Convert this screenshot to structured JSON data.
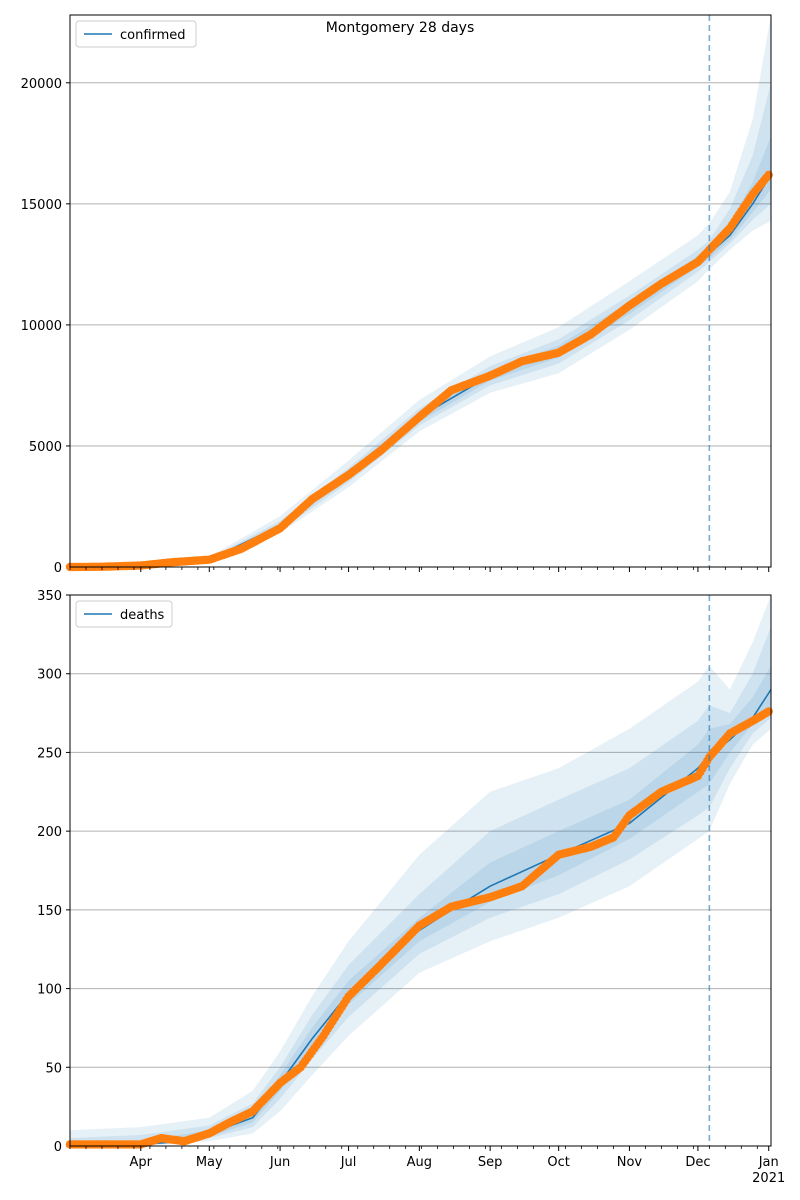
{
  "title": "Montgomery 28 days",
  "colors": {
    "line": "#1f77b4",
    "points": "#ff7f0e",
    "band": "#1f77b4",
    "grid": "#b0b0b0",
    "vline": "#1f77b4"
  },
  "x_axis": {
    "type": "date",
    "range": [
      "2020-03-01",
      "2021-01-02"
    ],
    "tick_labels": [
      "Apr",
      "May",
      "Jun",
      "Jul",
      "Aug",
      "Sep",
      "Oct",
      "Nov",
      "Dec",
      "Jan"
    ],
    "year_label": "2021"
  },
  "chart_data": [
    {
      "type": "line",
      "legend": "confirmed",
      "legend_position": "top-left",
      "grid": "horizontal",
      "ylim": [
        0,
        22800
      ],
      "yticks": [
        0,
        5000,
        10000,
        15000,
        20000
      ],
      "forecast_start": "2020-12-06",
      "model_curve": {
        "x": [
          "2020-03-01",
          "2020-04-01",
          "2020-05-01",
          "2020-06-01",
          "2020-07-01",
          "2020-08-01",
          "2020-09-01",
          "2020-10-01",
          "2020-11-01",
          "2020-12-01",
          "2020-12-06",
          "2020-12-15",
          "2020-12-25",
          "2021-01-02"
        ],
        "y": [
          0,
          40,
          300,
          1700,
          3800,
          6200,
          7900,
          8900,
          10700,
          12600,
          12950,
          13700,
          15000,
          16200
        ]
      },
      "bands": [
        {
          "x": [
            "2020-03-01",
            "2020-04-01",
            "2020-05-01",
            "2020-06-01",
            "2020-07-01",
            "2020-08-01",
            "2020-09-01",
            "2020-10-01",
            "2020-11-01",
            "2020-12-01",
            "2020-12-06",
            "2020-12-15",
            "2020-12-25",
            "2021-01-02"
          ],
          "low": [
            0,
            20,
            200,
            1400,
            3300,
            5600,
            7200,
            8000,
            9800,
            11800,
            12300,
            13100,
            13900,
            14300
          ],
          "high": [
            50,
            90,
            420,
            2100,
            4400,
            6900,
            8700,
            9900,
            11800,
            13700,
            14200,
            15500,
            18500,
            22800
          ]
        },
        {
          "x": [
            "2020-03-01",
            "2020-04-01",
            "2020-05-01",
            "2020-06-01",
            "2020-07-01",
            "2020-08-01",
            "2020-09-01",
            "2020-10-01",
            "2020-11-01",
            "2020-12-01",
            "2020-12-06",
            "2020-12-15",
            "2020-12-25",
            "2021-01-02"
          ],
          "low": [
            0,
            30,
            240,
            1500,
            3500,
            5850,
            7500,
            8400,
            10200,
            12200,
            12600,
            13350,
            14350,
            15000
          ],
          "high": [
            20,
            60,
            360,
            1900,
            4100,
            6550,
            8300,
            9400,
            11200,
            13100,
            13500,
            14800,
            17000,
            20000
          ]
        },
        {
          "x": [
            "2020-03-01",
            "2020-04-01",
            "2020-05-01",
            "2020-06-01",
            "2020-07-01",
            "2020-08-01",
            "2020-09-01",
            "2020-10-01",
            "2020-11-01",
            "2020-12-01",
            "2020-12-06",
            "2020-12-15",
            "2020-12-25",
            "2021-01-02"
          ],
          "low": [
            0,
            35,
            270,
            1600,
            3650,
            6000,
            7700,
            8650,
            10450,
            12400,
            12750,
            13500,
            14650,
            15600
          ],
          "high": [
            10,
            50,
            330,
            1800,
            3950,
            6400,
            8100,
            9150,
            10950,
            12850,
            13200,
            14200,
            15900,
            17800
          ]
        }
      ],
      "observed": {
        "x": [
          "2020-03-01",
          "2020-03-15",
          "2020-04-01",
          "2020-04-15",
          "2020-05-01",
          "2020-05-15",
          "2020-06-01",
          "2020-06-15",
          "2020-07-01",
          "2020-07-15",
          "2020-08-01",
          "2020-08-15",
          "2020-09-01",
          "2020-09-15",
          "2020-10-01",
          "2020-10-15",
          "2020-11-01",
          "2020-11-15",
          "2020-12-01",
          "2020-12-15",
          "2020-12-25",
          "2021-01-01"
        ],
        "y": [
          0,
          10,
          60,
          200,
          300,
          750,
          1600,
          2800,
          3800,
          4800,
          6200,
          7300,
          7900,
          8500,
          8850,
          9600,
          10800,
          11700,
          12600,
          14000,
          15400,
          16200
        ]
      }
    },
    {
      "type": "line",
      "legend": "deaths",
      "legend_position": "top-left",
      "grid": "horizontal",
      "ylim": [
        0,
        350
      ],
      "yticks": [
        0,
        50,
        100,
        150,
        200,
        250,
        300,
        350
      ],
      "forecast_start": "2020-12-06",
      "model_curve": {
        "x": [
          "2020-03-01",
          "2020-04-01",
          "2020-04-20",
          "2020-05-01",
          "2020-05-20",
          "2020-06-01",
          "2020-06-15",
          "2020-07-01",
          "2020-07-15",
          "2020-08-01",
          "2020-08-15",
          "2020-09-01",
          "2020-10-01",
          "2020-11-01",
          "2020-12-01",
          "2020-12-06",
          "2020-12-15",
          "2020-12-25",
          "2021-01-02"
        ],
        "y": [
          0,
          1,
          3,
          8,
          18,
          40,
          68,
          97,
          117,
          137,
          150,
          165,
          185,
          205,
          240,
          248,
          258,
          272,
          290
        ]
      },
      "bands": [
        {
          "x": [
            "2020-03-01",
            "2020-04-01",
            "2020-05-01",
            "2020-05-20",
            "2020-06-01",
            "2020-06-15",
            "2020-07-01",
            "2020-08-01",
            "2020-09-01",
            "2020-10-01",
            "2020-11-01",
            "2020-12-01",
            "2020-12-06",
            "2020-12-15",
            "2020-12-25",
            "2021-01-02"
          ],
          "low": [
            0,
            0,
            3,
            8,
            22,
            45,
            70,
            110,
            130,
            145,
            165,
            195,
            200,
            230,
            255,
            265
          ],
          "high": [
            10,
            12,
            18,
            35,
            60,
            95,
            130,
            185,
            225,
            240,
            265,
            295,
            305,
            290,
            320,
            350
          ]
        },
        {
          "x": [
            "2020-03-01",
            "2020-04-01",
            "2020-05-01",
            "2020-05-20",
            "2020-06-01",
            "2020-06-15",
            "2020-07-01",
            "2020-08-01",
            "2020-09-01",
            "2020-10-01",
            "2020-11-01",
            "2020-12-01",
            "2020-12-06",
            "2020-12-15",
            "2020-12-25",
            "2021-01-02"
          ],
          "low": [
            0,
            0,
            5,
            12,
            30,
            55,
            82,
            122,
            145,
            160,
            182,
            210,
            215,
            240,
            262,
            272
          ],
          "high": [
            5,
            7,
            13,
            27,
            50,
            83,
            115,
            160,
            200,
            220,
            240,
            270,
            280,
            275,
            300,
            330
          ]
        },
        {
          "x": [
            "2020-03-01",
            "2020-04-01",
            "2020-05-01",
            "2020-05-20",
            "2020-06-01",
            "2020-06-15",
            "2020-07-01",
            "2020-08-01",
            "2020-09-01",
            "2020-10-01",
            "2020-11-01",
            "2020-12-01",
            "2020-12-06",
            "2020-12-15",
            "2020-12-25",
            "2021-01-02"
          ],
          "low": [
            0,
            0,
            6,
            15,
            35,
            62,
            90,
            130,
            155,
            172,
            195,
            225,
            230,
            250,
            268,
            280
          ],
          "high": [
            2,
            3,
            10,
            22,
            45,
            75,
            105,
            145,
            180,
            200,
            220,
            255,
            265,
            268,
            285,
            305
          ]
        }
      ],
      "observed": {
        "x": [
          "2020-03-01",
          "2020-04-01",
          "2020-04-10",
          "2020-04-20",
          "2020-05-01",
          "2020-05-10",
          "2020-05-20",
          "2020-06-01",
          "2020-06-10",
          "2020-06-20",
          "2020-07-01",
          "2020-07-15",
          "2020-08-01",
          "2020-08-15",
          "2020-09-01",
          "2020-09-15",
          "2020-10-01",
          "2020-10-15",
          "2020-10-25",
          "2020-11-01",
          "2020-11-15",
          "2020-12-01",
          "2020-12-06",
          "2020-12-15",
          "2020-12-25",
          "2021-01-01"
        ],
        "y": [
          1,
          1,
          5,
          3,
          8,
          15,
          22,
          40,
          50,
          70,
          95,
          115,
          140,
          152,
          158,
          165,
          185,
          190,
          196,
          210,
          225,
          235,
          247,
          262,
          270,
          276
        ]
      }
    }
  ]
}
